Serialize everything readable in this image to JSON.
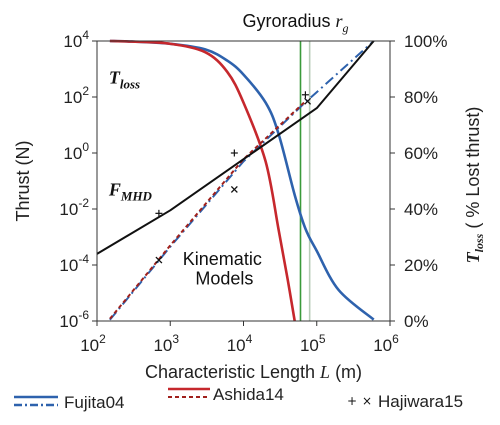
{
  "chart_data": {
    "type": "line",
    "title": "",
    "xlabel": {
      "text": "Characteristic Length ",
      "var": "L",
      "unit": " (m)"
    },
    "ylabel_left": "Thrust (N)",
    "ylabel_right": {
      "var": "T",
      "sub": "loss",
      "text": " ( % Lost thrust)"
    },
    "x_scale": "log",
    "y_left_scale": "log",
    "xlim": [
      100,
      1000000
    ],
    "ylim_left": [
      1e-06,
      10000
    ],
    "ylim_right": [
      0,
      100
    ],
    "x_ticks": [
      {
        "value": 100,
        "base": "10",
        "exp": "2"
      },
      {
        "value": 1000,
        "base": "10",
        "exp": "3"
      },
      {
        "value": 10000,
        "base": "10",
        "exp": "4"
      },
      {
        "value": 100000,
        "base": "10",
        "exp": "5"
      },
      {
        "value": 1000000,
        "base": "10",
        "exp": "6"
      }
    ],
    "y_left_ticks": [
      {
        "value": 10000,
        "base": "10",
        "exp": "4"
      },
      {
        "value": 100,
        "base": "10",
        "exp": "2"
      },
      {
        "value": 1,
        "base": "10",
        "exp": "0"
      },
      {
        "value": 0.01,
        "base": "10",
        "exp": "-2"
      },
      {
        "value": 0.0001,
        "base": "10",
        "exp": "-4"
      },
      {
        "value": 1e-06,
        "base": "10",
        "exp": "-6"
      }
    ],
    "y_right_ticks": [
      {
        "value": 100,
        "label": "100%"
      },
      {
        "value": 80,
        "label": "80%"
      },
      {
        "value": 60,
        "label": "60%"
      },
      {
        "value": 40,
        "label": "40%"
      },
      {
        "value": 20,
        "label": "20%"
      },
      {
        "value": 0,
        "label": "0%"
      }
    ],
    "grid": false,
    "legend_position": "bottom",
    "series": [
      {
        "name": "Fujita04",
        "axis": "right",
        "style": "solid",
        "color": "#2e62ad",
        "x": [
          150,
          300,
          1000,
          3000,
          6000,
          10000,
          20000,
          30000,
          50000,
          70000,
          100000,
          200000,
          600000
        ],
        "y": [
          100,
          99.8,
          99,
          97,
          93,
          88,
          78,
          67,
          45,
          33,
          25,
          11,
          0.5
        ]
      },
      {
        "name": "Ashida14",
        "axis": "right",
        "style": "solid",
        "color": "#c6282d",
        "x": [
          150,
          300,
          1000,
          3000,
          6000,
          10000,
          20000,
          30000,
          40000,
          50000
        ],
        "y": [
          100,
          99.8,
          99,
          96,
          89,
          78,
          57,
          33,
          15,
          0
        ]
      },
      {
        "name": "Fujita04",
        "axis": "left",
        "style": "dashdot",
        "color": "#2e62ad",
        "x": [
          150,
          1000,
          10000,
          70000,
          100000,
          600000
        ],
        "y": [
          1.1e-06,
          0.00045,
          0.5,
          65,
          150,
          10000
        ]
      },
      {
        "name": "Ashida14",
        "axis": "left",
        "style": "dashed",
        "color": "#a0201c",
        "x": [
          150,
          1000,
          10000,
          70000
        ],
        "y": [
          1.2e-06,
          0.0005,
          0.6,
          70
        ]
      },
      {
        "name": "",
        "axis": "left",
        "style": "solid",
        "color": "#111111",
        "x": [
          100,
          1000,
          10000,
          100000,
          600000
        ],
        "y": [
          0.00025,
          0.009,
          0.6,
          40,
          10000
        ]
      },
      {
        "name": "Hajiwara15",
        "axis": "left",
        "style": "markers",
        "marker": "+",
        "color": "#111111",
        "x": [
          700,
          7500,
          70000
        ],
        "y": [
          0.007,
          1,
          120
        ]
      },
      {
        "name": "Hajiwara15",
        "axis": "left",
        "style": "markers",
        "marker": "x",
        "color": "#111111",
        "x": [
          700,
          7500,
          75000
        ],
        "y": [
          0.00015,
          0.05,
          70
        ]
      }
    ],
    "vlines": [
      {
        "x": 60000,
        "color": "#3a9a3a"
      },
      {
        "x": 80000,
        "color": "#b8ccb8"
      }
    ],
    "annotations": [
      {
        "id": "gyro",
        "text": "Gyroradius ",
        "var": "r",
        "sub": "g",
        "at": [
          60000,
          10000
        ]
      },
      {
        "id": "tloss",
        "var": "T",
        "sub": "loss",
        "at": [
          170,
          300
        ]
      },
      {
        "id": "fmhd",
        "var": "F",
        "sub": "MHD",
        "at": [
          170,
          0.03
        ]
      },
      {
        "id": "kin1",
        "text": "Kinematic",
        "at": [
          2000,
          0.0001
        ]
      },
      {
        "id": "kin2",
        "text": "Models",
        "at": [
          2500,
          2e-05
        ]
      }
    ],
    "legend": [
      {
        "label": "Fujita04",
        "style": "solid-over-dashdot",
        "color": "#2e62ad"
      },
      {
        "label": "Ashida14",
        "style": "solid-over-dashed",
        "color": "#c6282d"
      },
      {
        "label": "Hajiwara15",
        "style": "markers"
      }
    ]
  }
}
